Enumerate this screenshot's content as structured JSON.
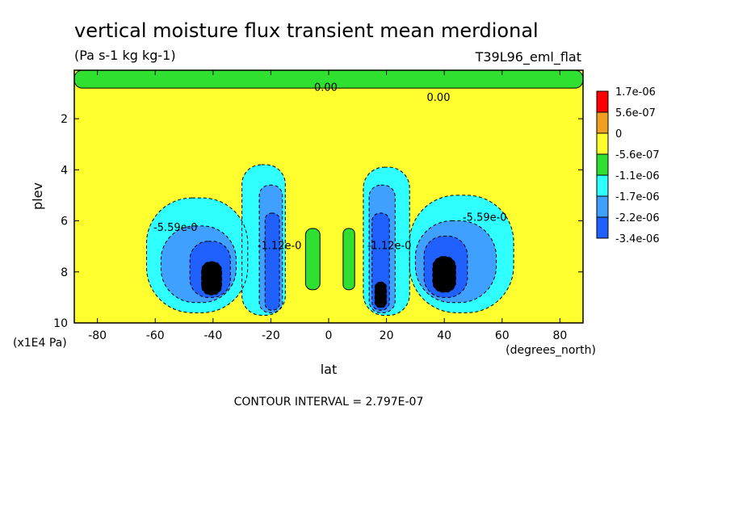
{
  "chart_data": {
    "type": "heatmap",
    "title": "vertical moisture flux transient mean merdional",
    "units": "(Pa s-1 kg kg-1)",
    "run": "T39L96_eml_flat",
    "xlabel": "lat",
    "x_units": "(degrees_north)",
    "ylabel": "plev",
    "y_units": "(x1E4 Pa)",
    "xlim": [
      -88,
      88
    ],
    "ylim": [
      10,
      0.1
    ],
    "x_ticks": [
      "-80",
      "-60",
      "-40",
      "-20",
      "0",
      "20",
      "40",
      "60",
      "80"
    ],
    "y_ticks": [
      "2",
      "4",
      "6",
      "8",
      "10"
    ],
    "contour_interval": "CONTOUR INTERVAL = 2.797E-07",
    "legend": {
      "placement": "right",
      "levels": [
        "1.7e-06",
        "5.6e-07",
        "0",
        "-5.6e-07",
        "-1.1e-06",
        "-1.7e-06",
        "-2.2e-06",
        "-3.4e-06"
      ],
      "colors": [
        "#ff0000",
        "#f0a020",
        "#ffff30",
        "#30e030",
        "#30ffff",
        "#40a0ff",
        "#2060ff"
      ]
    },
    "contour_labels": [
      {
        "text": "0.00",
        "lat": -1,
        "plev": 0.9
      },
      {
        "text": "0.00",
        "lat": 38,
        "plev": 1.3
      },
      {
        "text": "-5.59e-0",
        "lat": -53,
        "plev": 6.4
      },
      {
        "text": "-5.59e-0",
        "lat": 54,
        "plev": 6.0
      },
      {
        "text": "-1.12e-0",
        "lat": -17,
        "plev": 7.1
      },
      {
        "text": "-1.12e-0",
        "lat": 21,
        "plev": 7.1
      }
    ],
    "regions": [
      {
        "level": 0,
        "lat": [
          -88,
          88
        ],
        "plev": [
          0.1,
          10
        ]
      },
      {
        "level": 1,
        "lat": [
          -88,
          88
        ],
        "plev": [
          0.1,
          0.8
        ]
      },
      {
        "level": 1,
        "lat": [
          -8,
          -3
        ],
        "plev": [
          6.3,
          8.7
        ]
      },
      {
        "level": 1,
        "lat": [
          5,
          9
        ],
        "plev": [
          6.3,
          8.7
        ]
      },
      {
        "level": 2,
        "lat": [
          -63,
          -28
        ],
        "plev": [
          5.1,
          9.6
        ]
      },
      {
        "level": 2,
        "lat": [
          -30,
          -15
        ],
        "plev": [
          3.8,
          9.7
        ]
      },
      {
        "level": 2,
        "lat": [
          12,
          28
        ],
        "plev": [
          3.9,
          9.7
        ]
      },
      {
        "level": 2,
        "lat": [
          28,
          64
        ],
        "plev": [
          5.0,
          9.6
        ]
      },
      {
        "level": 3,
        "lat": [
          -58,
          -32
        ],
        "plev": [
          6.2,
          9.2
        ]
      },
      {
        "level": 3,
        "lat": [
          -24,
          -16
        ],
        "plev": [
          4.6,
          9.6
        ]
      },
      {
        "level": 3,
        "lat": [
          14,
          23
        ],
        "plev": [
          4.6,
          9.6
        ]
      },
      {
        "level": 3,
        "lat": [
          30,
          58
        ],
        "plev": [
          6.0,
          9.2
        ]
      },
      {
        "level": 4,
        "lat": [
          -48,
          -34
        ],
        "plev": [
          6.8,
          9.0
        ]
      },
      {
        "level": 4,
        "lat": [
          -22,
          -17
        ],
        "plev": [
          5.7,
          9.5
        ]
      },
      {
        "level": 4,
        "lat": [
          15,
          21
        ],
        "plev": [
          5.7,
          9.5
        ]
      },
      {
        "level": 4,
        "lat": [
          33,
          48
        ],
        "plev": [
          6.6,
          9.0
        ]
      },
      {
        "level": 5,
        "lat": [
          -44,
          -37
        ],
        "plev": [
          7.6,
          8.9
        ]
      },
      {
        "level": 5,
        "lat": [
          16,
          20
        ],
        "plev": [
          8.4,
          9.4
        ]
      },
      {
        "level": 5,
        "lat": [
          36,
          44
        ],
        "plev": [
          7.4,
          8.8
        ]
      }
    ]
  }
}
